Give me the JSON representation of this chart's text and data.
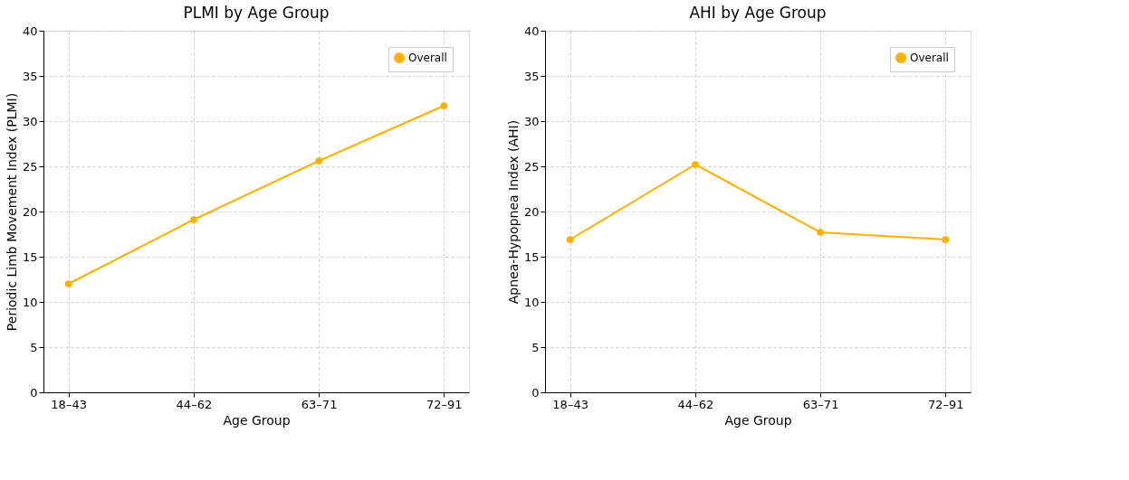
{
  "chart_data": [
    {
      "type": "line",
      "title": "PLMI by Age Group",
      "xlabel": "Age Group",
      "ylabel": "Periodic Limb Movement Index (PLMI)",
      "categories": [
        "18–43",
        "44–62",
        "63–71",
        "72–91"
      ],
      "series": [
        {
          "name": "Overall",
          "color": "#ffb000",
          "values": [
            12.0,
            19.1,
            25.6,
            31.7
          ]
        }
      ],
      "ylim": [
        0,
        40
      ],
      "yticks": [
        0,
        5,
        10,
        15,
        20,
        25,
        30,
        35,
        40
      ],
      "grid": true,
      "legend": "top right",
      "marker": "circle",
      "line_style": "solid"
    },
    {
      "type": "line",
      "title": "AHI by Age Group",
      "xlabel": "Age Group",
      "ylabel": "Apnea-Hypopnea Index (AHI)",
      "categories": [
        "18–43",
        "44–62",
        "63–71",
        "72–91"
      ],
      "series": [
        {
          "name": "Overall",
          "color": "#ffb000",
          "values": [
            16.9,
            25.2,
            17.7,
            16.9
          ]
        }
      ],
      "ylim": [
        0,
        40
      ],
      "yticks": [
        0,
        5,
        10,
        15,
        20,
        25,
        30,
        35,
        40
      ],
      "grid": true,
      "legend": "top right",
      "marker": "circle",
      "line_style": "solid"
    }
  ]
}
